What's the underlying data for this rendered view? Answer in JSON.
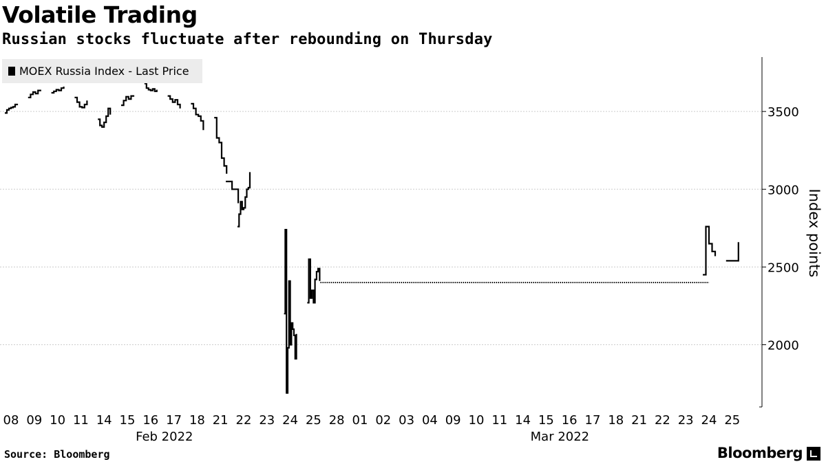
{
  "header": {
    "title": "Volatile Trading",
    "subtitle": "Russian stocks fluctuate after rebounding on Thursday"
  },
  "footer": {
    "source": "Source: Bloomberg",
    "brand": "Bloomberg"
  },
  "colors": {
    "series": "#000000",
    "grid": "#cccccc",
    "legend_bg": "#ececec"
  },
  "chart_data": {
    "type": "line",
    "legend": [
      "MOEX Russia Index - Last Price"
    ],
    "ylabel": "Index points",
    "ylim": [
      1600,
      3850
    ],
    "yticks": [
      2000,
      2500,
      3000,
      3500
    ],
    "grid": "horizontal dotted",
    "legend_position": "top-left",
    "months": [
      {
        "label": "Feb 2022",
        "under": "16"
      },
      {
        "label": "Mar 2022",
        "under": "15"
      }
    ],
    "x_days": [
      "08",
      "09",
      "10",
      "11",
      "14",
      "15",
      "16",
      "17",
      "18",
      "21",
      "22",
      "23",
      "24",
      "25",
      "28",
      "01",
      "02",
      "03",
      "04",
      "09",
      "10",
      "11",
      "14",
      "15",
      "16",
      "17",
      "18",
      "21",
      "22",
      "23",
      "24",
      "25"
    ],
    "series": [
      {
        "name": "MOEX Russia Index - Last Price",
        "segments": [
          {
            "day_index": 0,
            "values": [
              3490,
              3510,
              3520,
              3525,
              3530,
              3545,
              3550
            ]
          },
          {
            "day_index": 1,
            "values": [
              3590,
              3610,
              3625,
              3615,
              3635,
              3640
            ]
          },
          {
            "day_index": 2,
            "values": [
              3620,
              3630,
              3640,
              3635,
              3650,
              3660
            ]
          },
          {
            "day_index": 3,
            "values": [
              3590,
              3560,
              3530,
              3525,
              3545,
              3570
            ]
          },
          {
            "day_index": 4,
            "values": [
              3450,
              3410,
              3400,
              3430,
              3470,
              3520,
              3480
            ]
          },
          {
            "day_index": 5,
            "values": [
              3540,
              3570,
              3595,
              3580,
              3600,
              3595
            ]
          },
          {
            "day_index": 6,
            "values": [
              3680,
              3650,
              3640,
              3635,
              3645,
              3630,
              3640
            ]
          },
          {
            "day_index": 7,
            "values": [
              3600,
              3580,
              3560,
              3575,
              3545,
              3520
            ]
          },
          {
            "day_index": 8,
            "values": [
              3550,
              3520,
              3480,
              3470,
              3440,
              3380
            ]
          },
          {
            "day_index": 9,
            "values": [
              3460,
              3330,
              3300,
              3200,
              3150,
              3100
            ]
          },
          {
            "day_index": 9.5,
            "values": [
              3050,
              3000,
              2910
            ]
          },
          {
            "day_index": 10,
            "values": [
              2760,
              2840,
              2920,
              2870,
              2880,
              2950,
              3000,
              3010,
              3110
            ]
          },
          {
            "day_index": 12,
            "values": [
              2200,
              2740,
              1690,
              1980,
              2410,
              2000,
              2140,
              2100,
              2060,
              1910,
              2070
            ]
          },
          {
            "day_index": 13,
            "values": [
              2270,
              2550,
              2300,
              2350,
              2270,
              2420,
              2470,
              2490,
              2410
            ]
          },
          {
            "day_index": 30,
            "values": [
              2450,
              2760,
              2650,
              2600,
              2570
            ]
          },
          {
            "day_index": 31,
            "values": [
              2540,
              2660
            ]
          }
        ],
        "flat_gap": {
          "from_day_index": 13.3,
          "to_day_index": 30,
          "value": 2400
        }
      }
    ]
  }
}
